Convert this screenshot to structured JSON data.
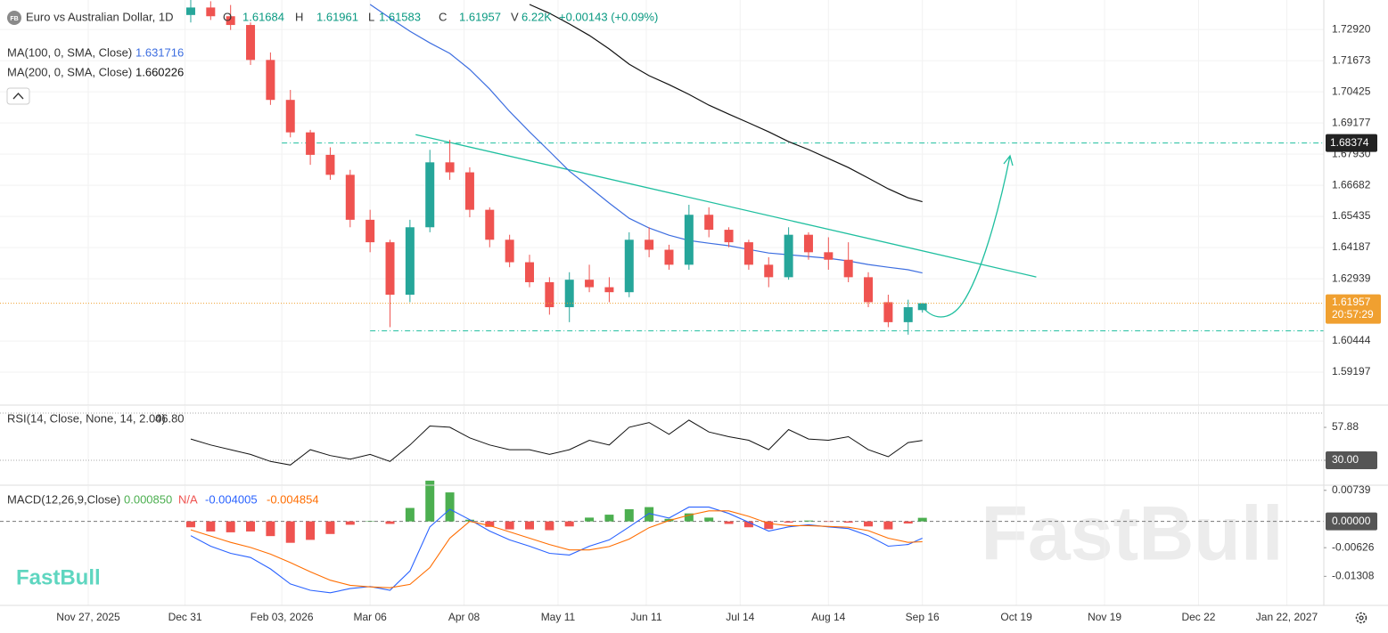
{
  "chart_data": [
    {
      "type": "candlestick",
      "title": "Euro vs Australian Dollar, 1D",
      "header": {
        "badge": "FB",
        "open_label": "O",
        "high_label": "H",
        "low_label": "L",
        "close_label": "C",
        "volume_label": "V",
        "volume": "6.22K",
        "change": "+0.00143 (+0.09%)"
      },
      "x": [
        "2026-01-02",
        "2026-01-09",
        "2026-01-16",
        "2026-01-23",
        "2026-01-30",
        "2026-02-06",
        "2026-02-13",
        "2026-02-20",
        "2026-02-27",
        "2026-03-06",
        "2026-03-13",
        "2026-03-20",
        "2026-03-27",
        "2026-04-03",
        "2026-04-10",
        "2026-04-17",
        "2026-04-24",
        "2026-05-01",
        "2026-05-08",
        "2026-05-15",
        "2026-05-22",
        "2026-05-29",
        "2026-06-05",
        "2026-06-12",
        "2026-06-19",
        "2026-06-26",
        "2026-07-03",
        "2026-07-10",
        "2026-07-17",
        "2026-07-24",
        "2026-07-31",
        "2026-08-07",
        "2026-08-14",
        "2026-08-21",
        "2026-08-28",
        "2026-09-04",
        "2026-09-11",
        "2026-09-16"
      ],
      "open": [
        1.735,
        1.738,
        1.7345,
        1.731,
        1.717,
        1.701,
        1.688,
        1.679,
        1.671,
        1.653,
        1.644,
        1.623,
        1.65,
        1.676,
        1.672,
        1.657,
        1.645,
        1.636,
        1.628,
        1.618,
        1.629,
        1.626,
        1.624,
        1.645,
        1.641,
        1.635,
        1.655,
        1.649,
        1.644,
        1.635,
        1.63,
        1.647,
        1.64,
        1.637,
        1.63,
        1.62,
        1.612,
        1.61684
      ],
      "high": [
        1.741,
        1.7405,
        1.739,
        1.732,
        1.72,
        1.705,
        1.689,
        1.682,
        1.673,
        1.657,
        1.645,
        1.653,
        1.681,
        1.685,
        1.674,
        1.658,
        1.647,
        1.639,
        1.63,
        1.632,
        1.635,
        1.63,
        1.648,
        1.65,
        1.643,
        1.659,
        1.658,
        1.65,
        1.645,
        1.638,
        1.65,
        1.648,
        1.646,
        1.644,
        1.632,
        1.623,
        1.621,
        1.61961
      ],
      "low": [
        1.732,
        1.733,
        1.729,
        1.715,
        1.699,
        1.686,
        1.675,
        1.669,
        1.65,
        1.64,
        1.61,
        1.62,
        1.648,
        1.669,
        1.654,
        1.642,
        1.634,
        1.626,
        1.615,
        1.612,
        1.624,
        1.62,
        1.622,
        1.638,
        1.633,
        1.633,
        1.646,
        1.642,
        1.633,
        1.626,
        1.629,
        1.637,
        1.633,
        1.628,
        1.618,
        1.61,
        1.607,
        1.61583
      ],
      "close": [
        1.738,
        1.7345,
        1.731,
        1.717,
        1.701,
        1.688,
        1.679,
        1.671,
        1.653,
        1.644,
        1.623,
        1.65,
        1.676,
        1.672,
        1.657,
        1.645,
        1.636,
        1.628,
        1.618,
        1.629,
        1.626,
        1.624,
        1.645,
        1.641,
        1.635,
        1.655,
        1.649,
        1.644,
        1.635,
        1.63,
        1.647,
        1.64,
        1.637,
        1.63,
        1.62,
        1.612,
        1.618,
        1.61957
      ],
      "up_color": "#26a69a",
      "down_color": "#ef5350",
      "series": [
        {
          "name": "MA(100, 0, SMA, Close)",
          "color": "#3d6ee0",
          "values": [
            null,
            null,
            null,
            null,
            null,
            null,
            null,
            null,
            null,
            1.7392,
            1.7338,
            1.7285,
            1.7238,
            1.7196,
            1.7132,
            1.7053,
            1.6964,
            1.6882,
            1.6804,
            1.6725,
            1.6661,
            1.6597,
            1.6536,
            1.6497,
            1.6468,
            1.6447,
            1.6436,
            1.6426,
            1.6411,
            1.6397,
            1.639,
            1.6383,
            1.6376,
            1.6365,
            1.6351,
            1.634,
            1.633,
            1.631716
          ]
        },
        {
          "name": "MA(200, 0, SMA, Close)",
          "color": "#111111",
          "values": [
            null,
            null,
            null,
            null,
            null,
            null,
            null,
            null,
            null,
            null,
            null,
            null,
            null,
            null,
            null,
            null,
            null,
            1.7392,
            1.7357,
            1.7314,
            1.7268,
            1.7214,
            1.7153,
            1.7107,
            1.7071,
            1.7032,
            1.6989,
            1.6953,
            1.6918,
            1.6882,
            1.6843,
            1.6811,
            1.6775,
            1.6739,
            1.6697,
            1.6654,
            1.6618,
            1.660226
          ]
        }
      ],
      "last_price_color": "#f0a030",
      "countdown": "20:57:29",
      "drawing_color": "#1fbf9f",
      "levels": [
        {
          "value": 1.68374,
          "label": "1.68374",
          "start": "2026-02-03"
        },
        {
          "value": 1.6085,
          "start": "2026-03-06"
        }
      ],
      "trendline": {
        "x": [
          "2026-03-22",
          "2026-10-26"
        ],
        "y": [
          1.6871,
          1.6301
        ]
      },
      "xlim": [
        "2025-10-27",
        "2027-02-04"
      ],
      "xticks": [
        {
          "value": "2025-11-27",
          "label": "Nov 27, 2025"
        },
        {
          "value": "2025-12-31",
          "label": "Dec 31"
        },
        {
          "value": "2026-02-03",
          "label": "Feb 03, 2026"
        },
        {
          "value": "2026-03-06",
          "label": "Mar 06"
        },
        {
          "value": "2026-04-08",
          "label": "Apr 08"
        },
        {
          "value": "2026-05-11",
          "label": "May 11"
        },
        {
          "value": "2026-06-11",
          "label": "Jun 11"
        },
        {
          "value": "2026-07-14",
          "label": "Jul 14"
        },
        {
          "value": "2026-08-14",
          "label": "Aug 14"
        },
        {
          "value": "2026-09-16",
          "label": "Sep 16"
        },
        {
          "value": "2026-10-19",
          "label": "Oct 19"
        },
        {
          "value": "2026-11-19",
          "label": "Nov 19"
        },
        {
          "value": "2026-12-22",
          "label": "Dec 22"
        },
        {
          "value": "2027-01-22",
          "label": "Jan 22, 2027"
        }
      ],
      "ylim": [
        1.5788,
        1.741
      ],
      "yticks": [
        {
          "value": 1.7292,
          "label": "1.72920"
        },
        1.71673,
        1.70425,
        1.69177,
        {
          "value": 1.6793,
          "label": "1.67930"
        },
        1.66682,
        1.65435,
        1.64187,
        1.62939,
        1.60444,
        1.59197
      ],
      "grid": true
    },
    {
      "type": "line",
      "title": "RSI(14, Close, None, 14, 2.00)",
      "value_label": "46.80",
      "color": "#111111",
      "values": [
        48,
        43,
        39,
        35,
        29,
        26,
        39,
        34,
        31,
        35,
        29,
        43,
        59,
        58,
        49,
        43,
        39,
        39,
        35,
        39,
        47,
        43,
        58,
        62,
        52,
        64,
        54,
        50,
        47,
        39,
        56,
        48,
        47,
        50,
        39,
        33,
        45,
        46.8
      ],
      "bands": [
        70,
        30
      ],
      "ylim": [
        8.9,
        76
      ],
      "yticks": [
        57.88,
        {
          "value": 30,
          "label": "30.00"
        }
      ]
    },
    {
      "type": "macd",
      "title": "MACD(12,26,9,Close)",
      "legend_values": [
        "0.000850",
        "N/A",
        "-0.004005",
        "-0.004854"
      ],
      "histogram": {
        "up_color": "#4caf50",
        "down_color": "#ef5350",
        "values": [
          -0.0014,
          -0.0024,
          -0.0026,
          -0.0024,
          -0.0035,
          -0.0051,
          -0.0044,
          -0.003,
          -0.0008,
          0.0001,
          -0.0006,
          0.0032,
          0.0097,
          0.0069,
          0.0004,
          -0.0013,
          -0.0019,
          -0.0019,
          -0.0021,
          -0.0012,
          0.0009,
          0.0016,
          0.0029,
          0.0034,
          0.0006,
          0.0019,
          0.0009,
          -0.0006,
          -0.0014,
          -0.0018,
          -0.0003,
          0.0002,
          -0.0001,
          -0.0003,
          -0.0012,
          -0.0019,
          -0.0005,
          0.00085
        ]
      },
      "series": [
        {
          "color": "#2962ff",
          "values": [
            -0.0034,
            -0.0059,
            -0.0076,
            -0.0086,
            -0.0113,
            -0.0149,
            -0.0164,
            -0.017,
            -0.016,
            -0.0155,
            -0.0164,
            -0.0118,
            -0.0013,
            0.0029,
            0.0004,
            -0.0023,
            -0.0044,
            -0.0059,
            -0.0076,
            -0.008,
            -0.0059,
            -0.0044,
            -0.0013,
            0.0019,
            0.0008,
            0.0034,
            0.0034,
            0.0019,
            -0.0002,
            -0.0023,
            -0.0013,
            -0.0008,
            -0.0013,
            -0.0017,
            -0.0034,
            -0.0059,
            -0.0055,
            -0.004005
          ]
        },
        {
          "color": "#ff6d00",
          "values": [
            -0.002,
            -0.0035,
            -0.005,
            -0.0062,
            -0.0078,
            -0.0098,
            -0.012,
            -0.014,
            -0.0152,
            -0.0156,
            -0.0158,
            -0.015,
            -0.011,
            -0.004,
            0.0,
            -0.001,
            -0.0025,
            -0.004,
            -0.0055,
            -0.0068,
            -0.0068,
            -0.006,
            -0.0042,
            -0.0015,
            0.0002,
            0.0015,
            0.0025,
            0.0025,
            0.0012,
            -0.0005,
            -0.001,
            -0.001,
            -0.0012,
            -0.0014,
            -0.0022,
            -0.004,
            -0.005,
            -0.004854
          ]
        }
      ],
      "ylim": [
        -0.02,
        0.0084
      ],
      "yticks": [
        0.00739,
        {
          "value": 0,
          "label": "0.00000"
        },
        -0.00626,
        -0.01308
      ]
    }
  ],
  "branding": {
    "watermark": "FastBull",
    "logo": "FastBull"
  }
}
